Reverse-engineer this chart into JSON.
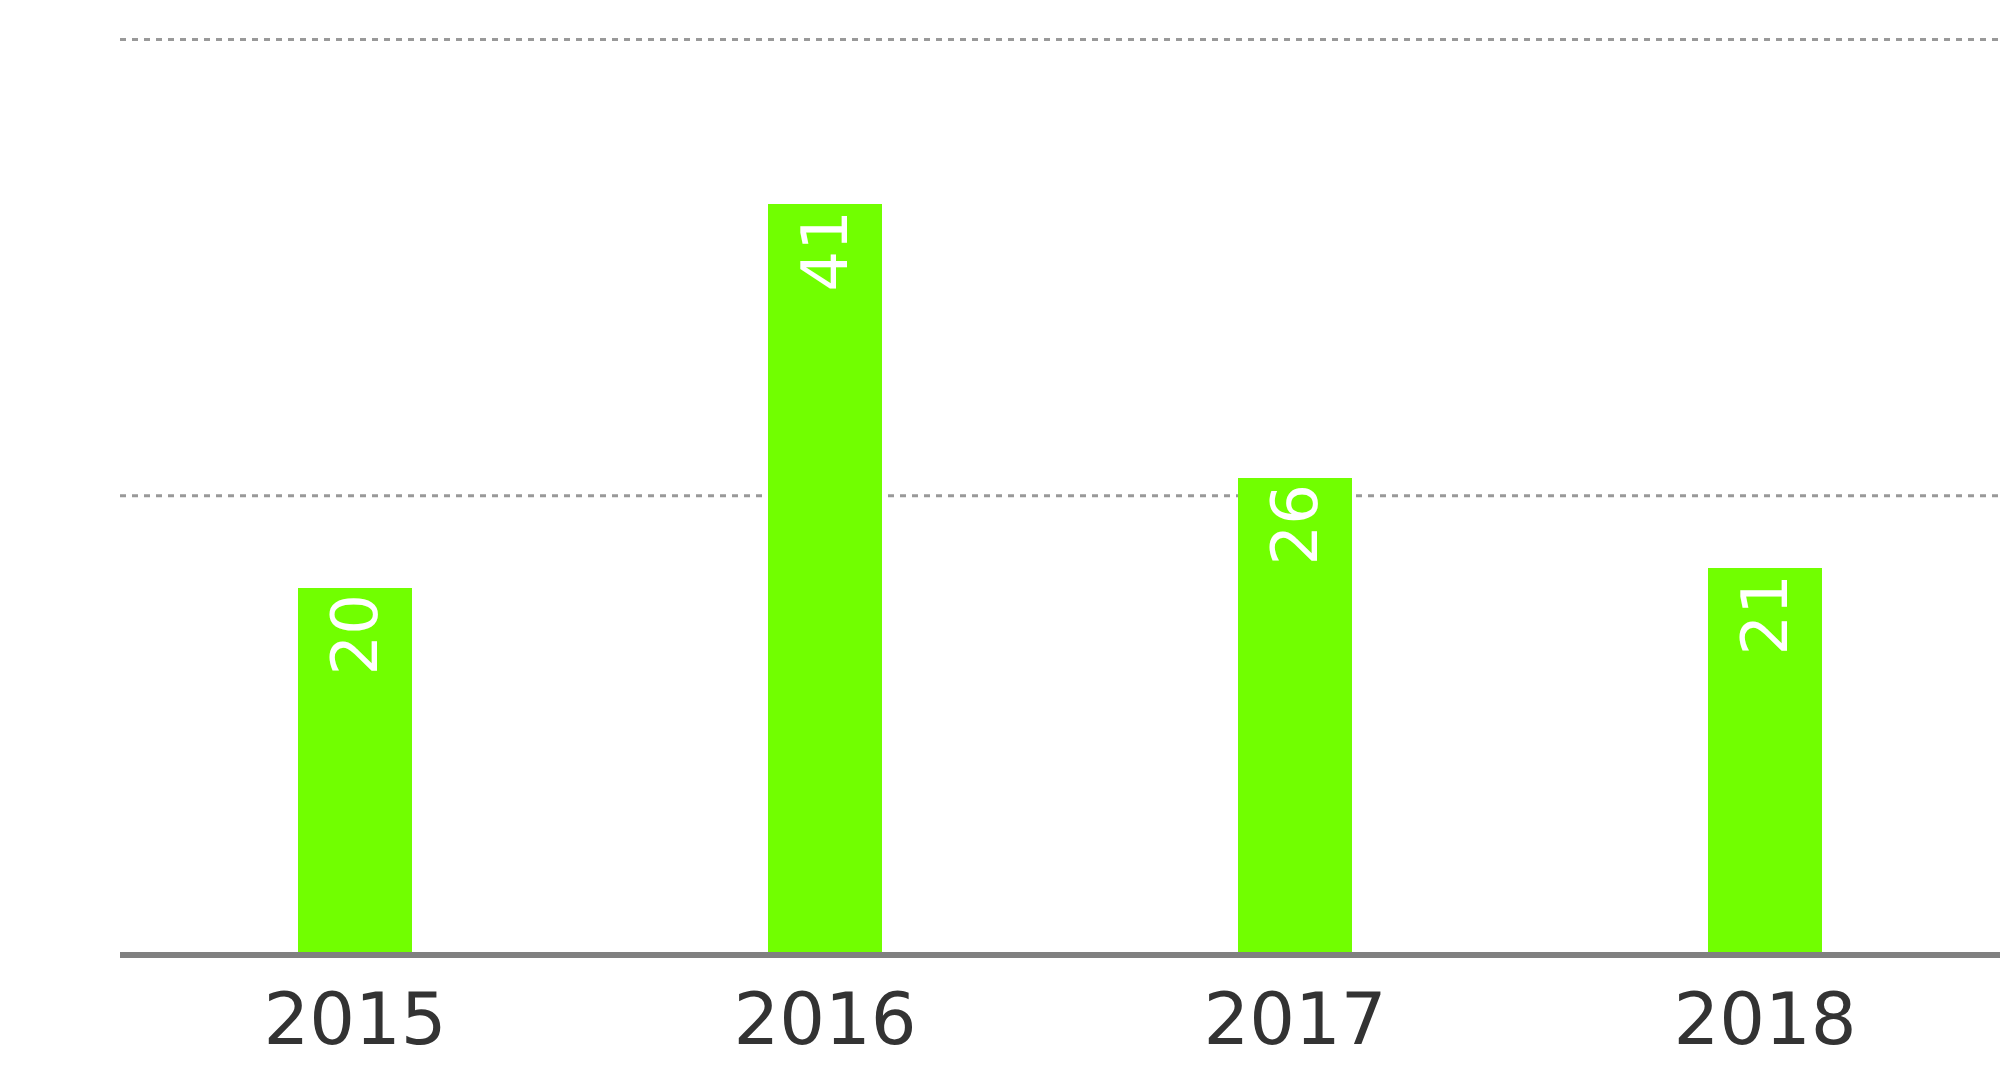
{
  "chart_data": {
    "type": "bar",
    "categories": [
      "2015",
      "2016",
      "2017",
      "2018"
    ],
    "values": [
      20,
      41,
      26,
      21
    ],
    "color": "#71ff00",
    "data_labels": true,
    "ref_lines": [
      {
        "axis": "y",
        "value": 25,
        "color": "#999999",
        "line_style": "dotted"
      },
      {
        "axis": "y",
        "value": 50,
        "color": "#999999",
        "line_style": "dotted"
      }
    ],
    "tick_labels": "x",
    "legend": false
  }
}
